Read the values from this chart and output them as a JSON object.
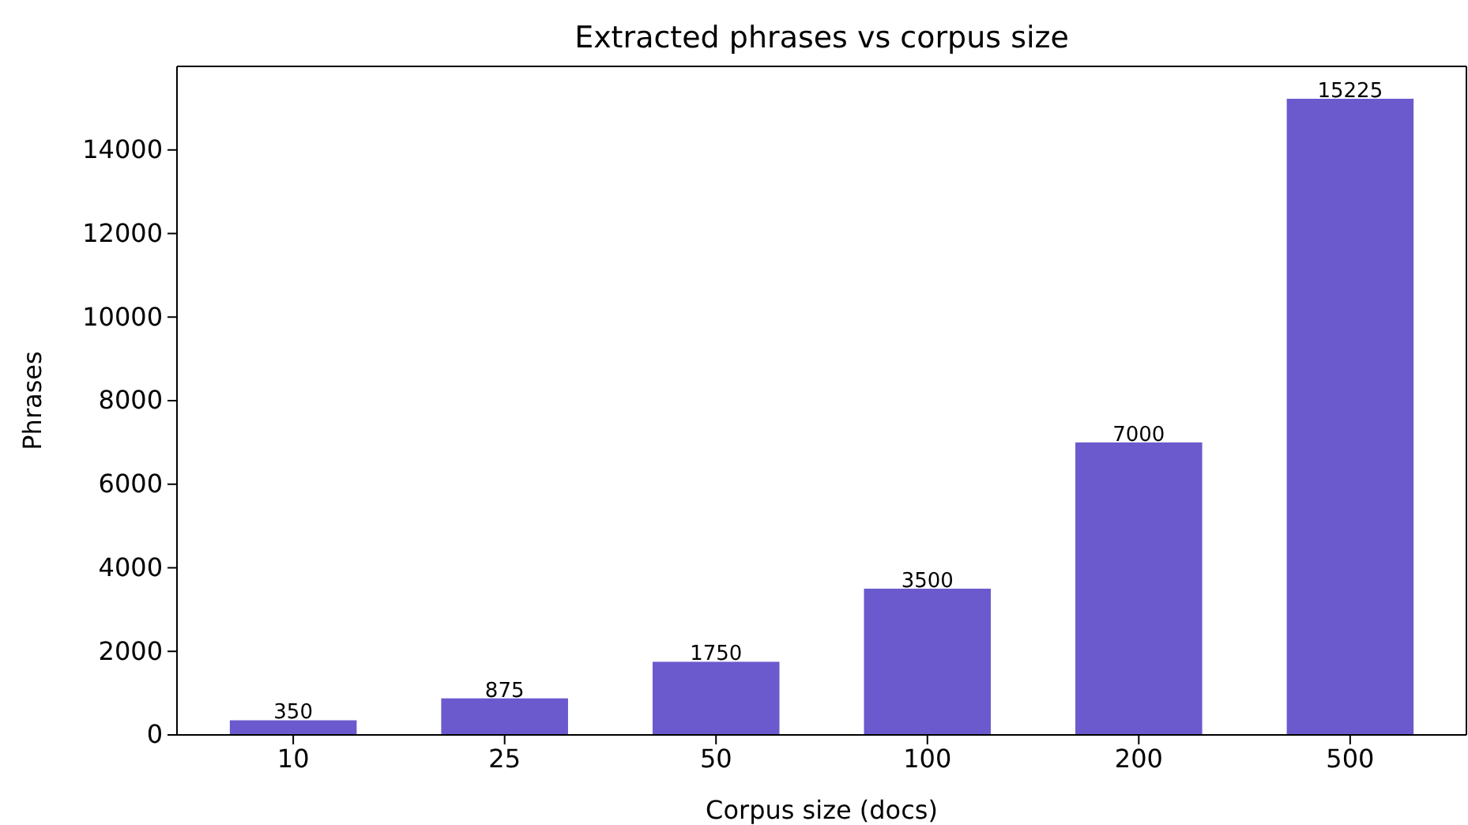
{
  "chart_data": {
    "type": "bar",
    "title": "Extracted phrases vs corpus size",
    "xlabel": "Corpus size (docs)",
    "ylabel": "Phrases",
    "categories": [
      "10",
      "25",
      "50",
      "100",
      "200",
      "500"
    ],
    "values": [
      350,
      875,
      1750,
      3500,
      7000,
      15225
    ],
    "color": "#6a5acd",
    "data_labels": true,
    "ylim": [
      0,
      16000
    ],
    "yticks": [
      0,
      2000,
      4000,
      6000,
      8000,
      10000,
      12000,
      14000
    ],
    "grid": false
  }
}
